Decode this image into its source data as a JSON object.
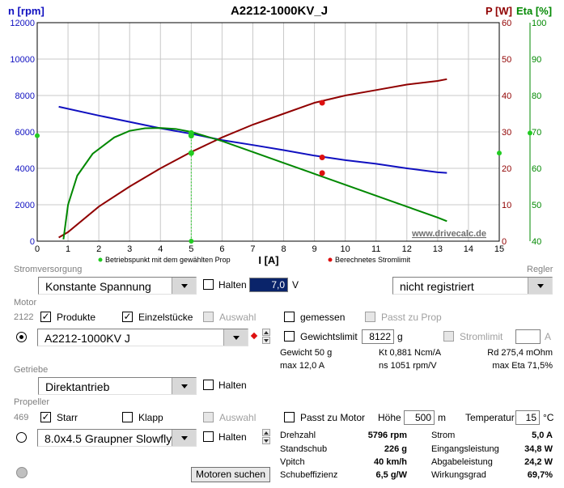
{
  "chart": {
    "title": "A2212-1000KV_J",
    "left_axis_label": "n [rpm]",
    "right_axis_label_p": "P [W]",
    "right_axis_label_eta": "Eta [%]",
    "x_axis_label": "I [A]",
    "watermark": "www.drivecalc.de",
    "legend_green": "Betriebspunkt mit dem gewählten Prop",
    "legend_red": "Berechnetes Stromlimit",
    "colors": {
      "rpm": "#1010c0",
      "power": "#900000",
      "eta": "#008800",
      "marker_green": "#22cc22",
      "marker_red": "#dd1010"
    }
  },
  "chart_data": {
    "type": "line",
    "title": "A2212-1000KV_J",
    "xlabel": "I [A]",
    "xlim": [
      0,
      15
    ],
    "x_ticks": [
      "0",
      "1",
      "2",
      "3",
      "4",
      "5",
      "6",
      "7",
      "8",
      "9",
      "10",
      "11",
      "12",
      "13",
      "14",
      "15"
    ],
    "axes": {
      "rpm": {
        "label": "n [rpm]",
        "range": [
          0,
          12000
        ],
        "ticks": [
          "0",
          "2000",
          "4000",
          "6000",
          "8000",
          "10000",
          "12000"
        ]
      },
      "power": {
        "label": "P [W]",
        "range": [
          0,
          60
        ],
        "ticks": [
          "0",
          "10",
          "20",
          "30",
          "40",
          "50",
          "60"
        ]
      },
      "eta": {
        "label": "Eta [%]",
        "range": [
          40,
          100
        ],
        "ticks": [
          "40",
          "50",
          "60",
          "70",
          "80",
          "90",
          "100"
        ]
      }
    },
    "series": [
      {
        "axis": "rpm",
        "color": "#1010c0",
        "x": [
          0.7,
          2,
          3,
          4,
          5,
          6,
          7,
          8,
          9,
          10,
          11,
          12,
          13,
          13.3
        ],
        "y": [
          7380,
          6900,
          6550,
          6200,
          5900,
          5550,
          5280,
          5000,
          4700,
          4450,
          4250,
          4000,
          3780,
          3750
        ]
      },
      {
        "axis": "power",
        "color": "#900000",
        "x": [
          0.7,
          1,
          2,
          3,
          4,
          5,
          6,
          7,
          8,
          9,
          10,
          11,
          12,
          13,
          13.3
        ],
        "y": [
          1,
          2.5,
          9.5,
          15,
          20,
          24.5,
          28.5,
          32,
          35,
          38,
          40,
          41.5,
          43,
          44,
          44.5
        ]
      },
      {
        "axis": "eta",
        "color": "#008800",
        "x": [
          0.85,
          1,
          1.3,
          1.8,
          2.5,
          3,
          3.5,
          4,
          4.5,
          5,
          6,
          7,
          8,
          9,
          10,
          11,
          12,
          13,
          13.3
        ],
        "y": [
          40.5,
          50,
          58,
          64,
          68.5,
          70.3,
          71,
          71.1,
          70.8,
          70,
          67.5,
          64.5,
          61.5,
          58.5,
          55.5,
          52.5,
          49.5,
          46.5,
          45.5
        ]
      }
    ],
    "operating_point": {
      "x": 5.0,
      "rpm": 5796,
      "power": 24.2,
      "eta": 69.7
    },
    "current_limit": {
      "x": 9.25,
      "rpm": 4600,
      "power": 38,
      "eta": 58.7
    },
    "side_markers": {
      "left_rpm": 5796,
      "right_eta": 69.7,
      "right_power": 24.2,
      "bottom_x": 5.0
    },
    "grid": true
  },
  "ui": {
    "stromversorgung": {
      "section": "Stromversorgung",
      "mode": "Konstante Spannung",
      "halten_label": "Halten",
      "voltage": "7,0",
      "unit": "V",
      "regler_section": "Regler",
      "regler_value": "nicht registriert"
    },
    "motor": {
      "section": "Motor",
      "count": "2122",
      "produkte": "Produkte",
      "einzelstuecke": "Einzelstücke",
      "auswahl": "Auswahl",
      "gemessen": "gemessen",
      "passt_zu_prop": "Passt zu Prop",
      "selected": "A2212-1000KV  J",
      "gewichtslimit_label": "Gewichtslimit",
      "gewichtslimit_value": "8122",
      "gewichtslimit_unit": "g",
      "stromlimit_label": "Stromlimit",
      "stromlimit_unit": "A",
      "gewicht": "Gewicht 50 g",
      "kt": "Kt 0,881 Ncm/A",
      "rd": "Rd 275,4 mOhm",
      "max_current": "max 12,0 A",
      "ns": "ns 1051 rpm/V",
      "max_eta": "max Eta 71,5%"
    },
    "getriebe": {
      "section": "Getriebe",
      "value": "Direktantrieb",
      "halten_label": "Halten"
    },
    "propeller": {
      "section": "Propeller",
      "count": "469",
      "starr": "Starr",
      "klapp": "Klapp",
      "auswahl": "Auswahl",
      "passt_zu_motor": "Passt zu Motor",
      "hoehe_label": "Höhe",
      "hoehe_value": "500",
      "hoehe_unit": "m",
      "temp_label": "Temperatur",
      "temp_value": "15",
      "temp_unit": "°C",
      "selected": "8.0x4.5 Graupner Slowfly",
      "halten_label": "Halten"
    },
    "results": {
      "drehzahl_label": "Drehzahl",
      "drehzahl_value": "5796 rpm",
      "standschub_label": "Standschub",
      "standschub_value": "226 g",
      "vpitch_label": "Vpitch",
      "vpitch_value": "40 km/h",
      "schubeffizienz_label": "Schubeffizienz",
      "schubeffizienz_value": "6,5 g/W",
      "strom_label": "Strom",
      "strom_value": "5,0 A",
      "eingang_label": "Eingangsleistung",
      "eingang_value": "34,8 W",
      "abgabe_label": "Abgabeleistung",
      "abgabe_value": "24,2 W",
      "wirkung_label": "Wirkungsgrad",
      "wirkung_value": "69,7%"
    },
    "search_button": "Motoren suchen"
  }
}
